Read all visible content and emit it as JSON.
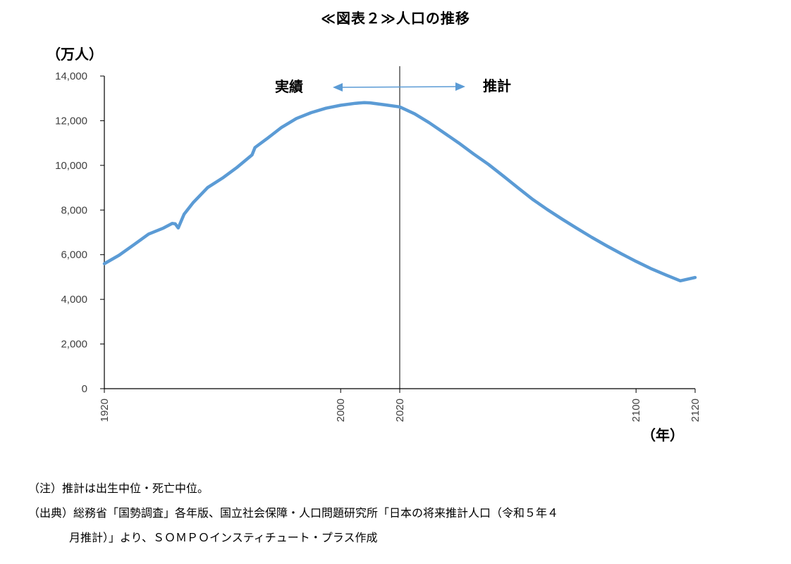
{
  "chart_data": {
    "type": "line",
    "title": "≪図表２≫人口の推移",
    "ylabel": "（万人）",
    "xlabel": "（年）",
    "ylim": [
      0,
      14000
    ],
    "xlim": [
      1920,
      2120
    ],
    "y_ticks": [
      "0",
      "2,000",
      "4,000",
      "6,000",
      "8,000",
      "10,000",
      "12,000",
      "14,000"
    ],
    "y_tick_values": [
      0,
      2000,
      4000,
      6000,
      8000,
      10000,
      12000,
      14000
    ],
    "x_ticks": [
      "1920",
      "2000",
      "2020",
      "2100",
      "2120"
    ],
    "x_tick_values": [
      1920,
      2000,
      2020,
      2100,
      2120
    ],
    "divider_year": 2020,
    "regions": {
      "actual": "実績",
      "projection": "推計"
    },
    "line_color": "#5B9BD5",
    "arrow_color": "#5B9BD5",
    "grid": false,
    "series": [
      {
        "x": [
          1920,
          1925,
          1930,
          1935,
          1940,
          1943,
          1944,
          1945,
          1947,
          1950,
          1955,
          1960,
          1965,
          1970,
          1971,
          1975,
          1980,
          1985,
          1990,
          1995,
          2000,
          2005,
          2008,
          2010,
          2015,
          2020,
          2025,
          2030,
          2035,
          2040,
          2045,
          2050,
          2055,
          2060,
          2065,
          2070,
          2075,
          2080,
          2085,
          2090,
          2095,
          2100,
          2105,
          2110,
          2115,
          2120
        ],
        "y": [
          5596,
          5974,
          6445,
          6925,
          7193,
          7400,
          7380,
          7200,
          7810,
          8320,
          9010,
          9430,
          9920,
          10470,
          10800,
          11190,
          11700,
          12100,
          12360,
          12560,
          12690,
          12780,
          12810,
          12800,
          12710,
          12620,
          12310,
          11910,
          11460,
          11000,
          10510,
          10050,
          9530,
          9000,
          8480,
          8020,
          7590,
          7180,
          6780,
          6400,
          6040,
          5700,
          5380,
          5100,
          4830,
          4980
        ]
      }
    ]
  },
  "notes": {
    "line1": "（注）推計は出生中位・死亡中位。",
    "line2": "（出典）総務省「国勢調査」各年版、国立社会保障・人口問題研究所「日本の将来推計人口（令和５年４",
    "line3": "月推計）」より、ＳＯＭＰＯインスティチュート・プラス作成"
  }
}
